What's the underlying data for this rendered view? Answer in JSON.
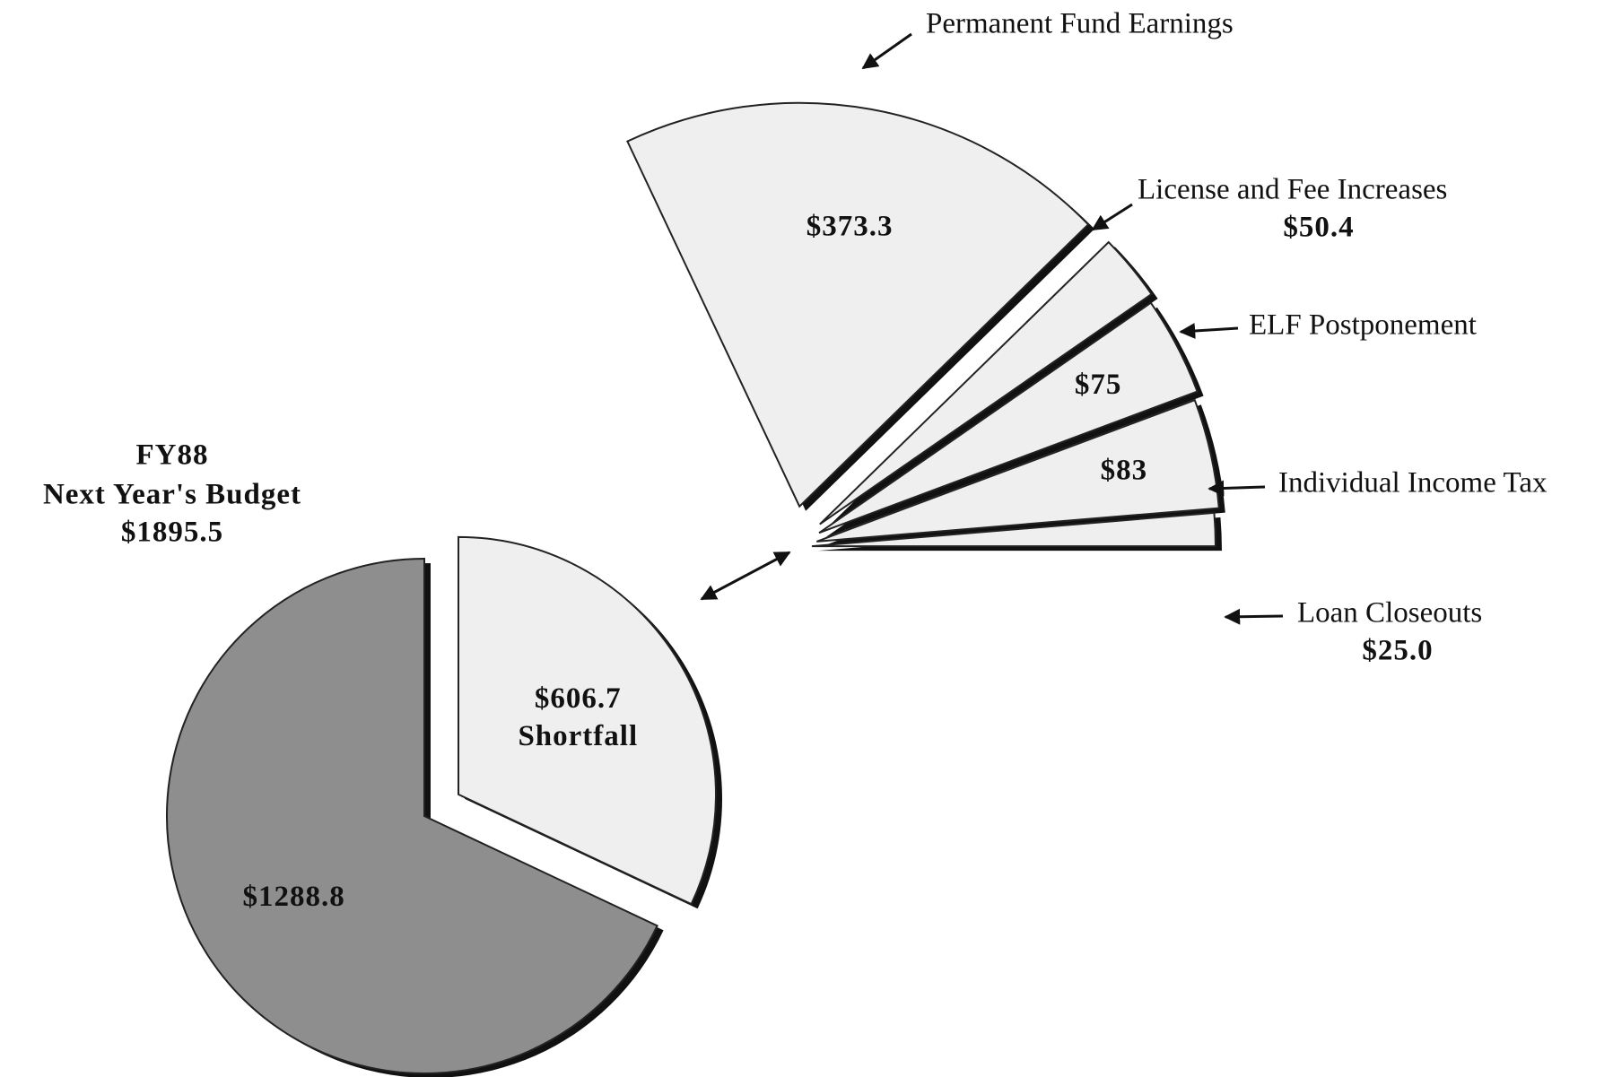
{
  "chart_data": [
    {
      "type": "pie",
      "title": "FY88",
      "subtitle": "Next Year's Budget",
      "total_label": "$1895.5",
      "categories": [
        null,
        "Shortfall"
      ],
      "values": [
        1288.8,
        606.7
      ],
      "value_labels": [
        "$1288.8",
        "$606.7"
      ],
      "colors": [
        "#8e8e8e",
        "#efefef"
      ]
    },
    {
      "type": "pie",
      "categories": [
        "Permanent Fund Earnings",
        "License and Fee Increases",
        "ELF Postponement",
        "Individual Income Tax",
        "Loan Closeouts"
      ],
      "values": [
        373.3,
        50.4,
        75,
        83,
        25.0
      ],
      "value_labels": [
        "$373.3",
        "$50.4",
        "$75",
        "$83",
        "$25.0"
      ],
      "color": "#efefef"
    }
  ]
}
